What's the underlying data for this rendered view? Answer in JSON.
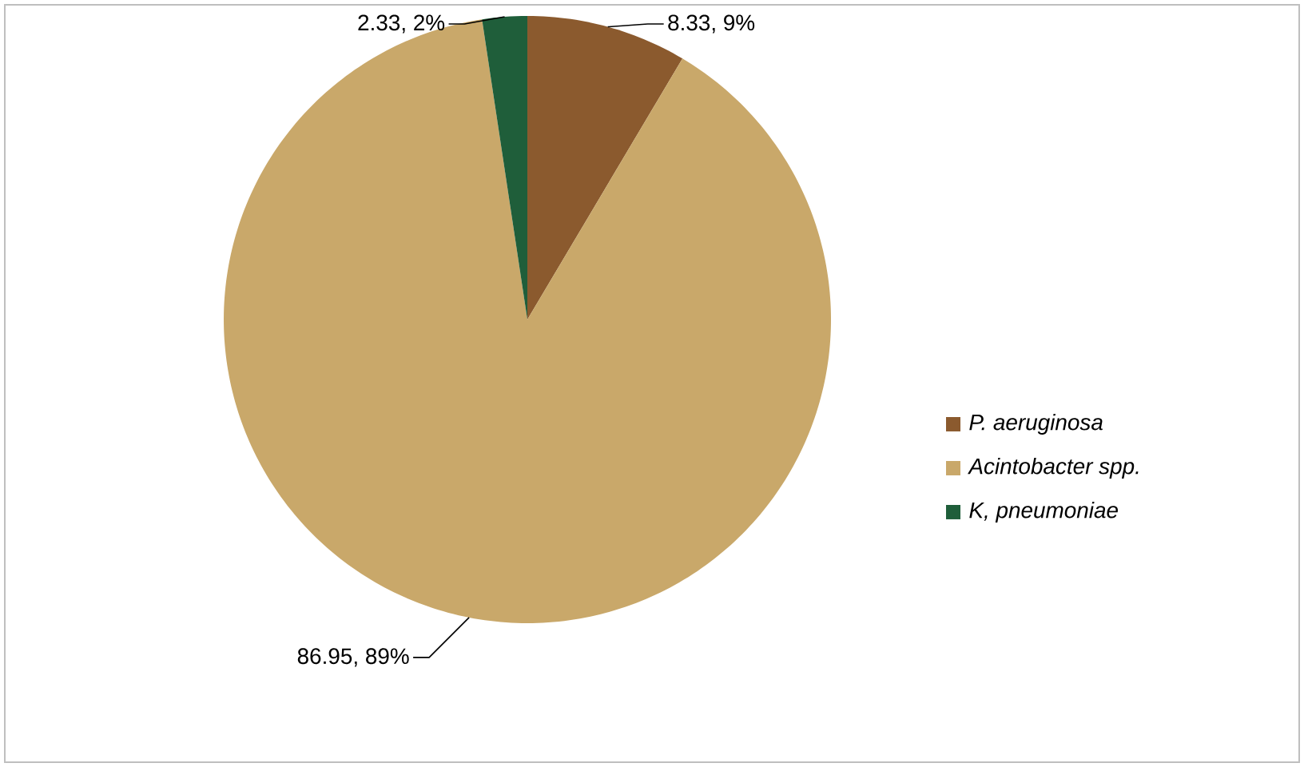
{
  "chart_data": {
    "type": "pie",
    "categories": [
      "P. aeruginosa",
      "Acintobacter spp.",
      "K, pneumoniae"
    ],
    "values": [
      8.33,
      86.95,
      2.33
    ],
    "colors": [
      "#8b5a2e",
      "#c9a86a",
      "#1f5e3a"
    ],
    "value_labels": [
      "8.33, 9%",
      "86.95, 89%",
      "2.33, 2%"
    ],
    "legend": "right"
  }
}
